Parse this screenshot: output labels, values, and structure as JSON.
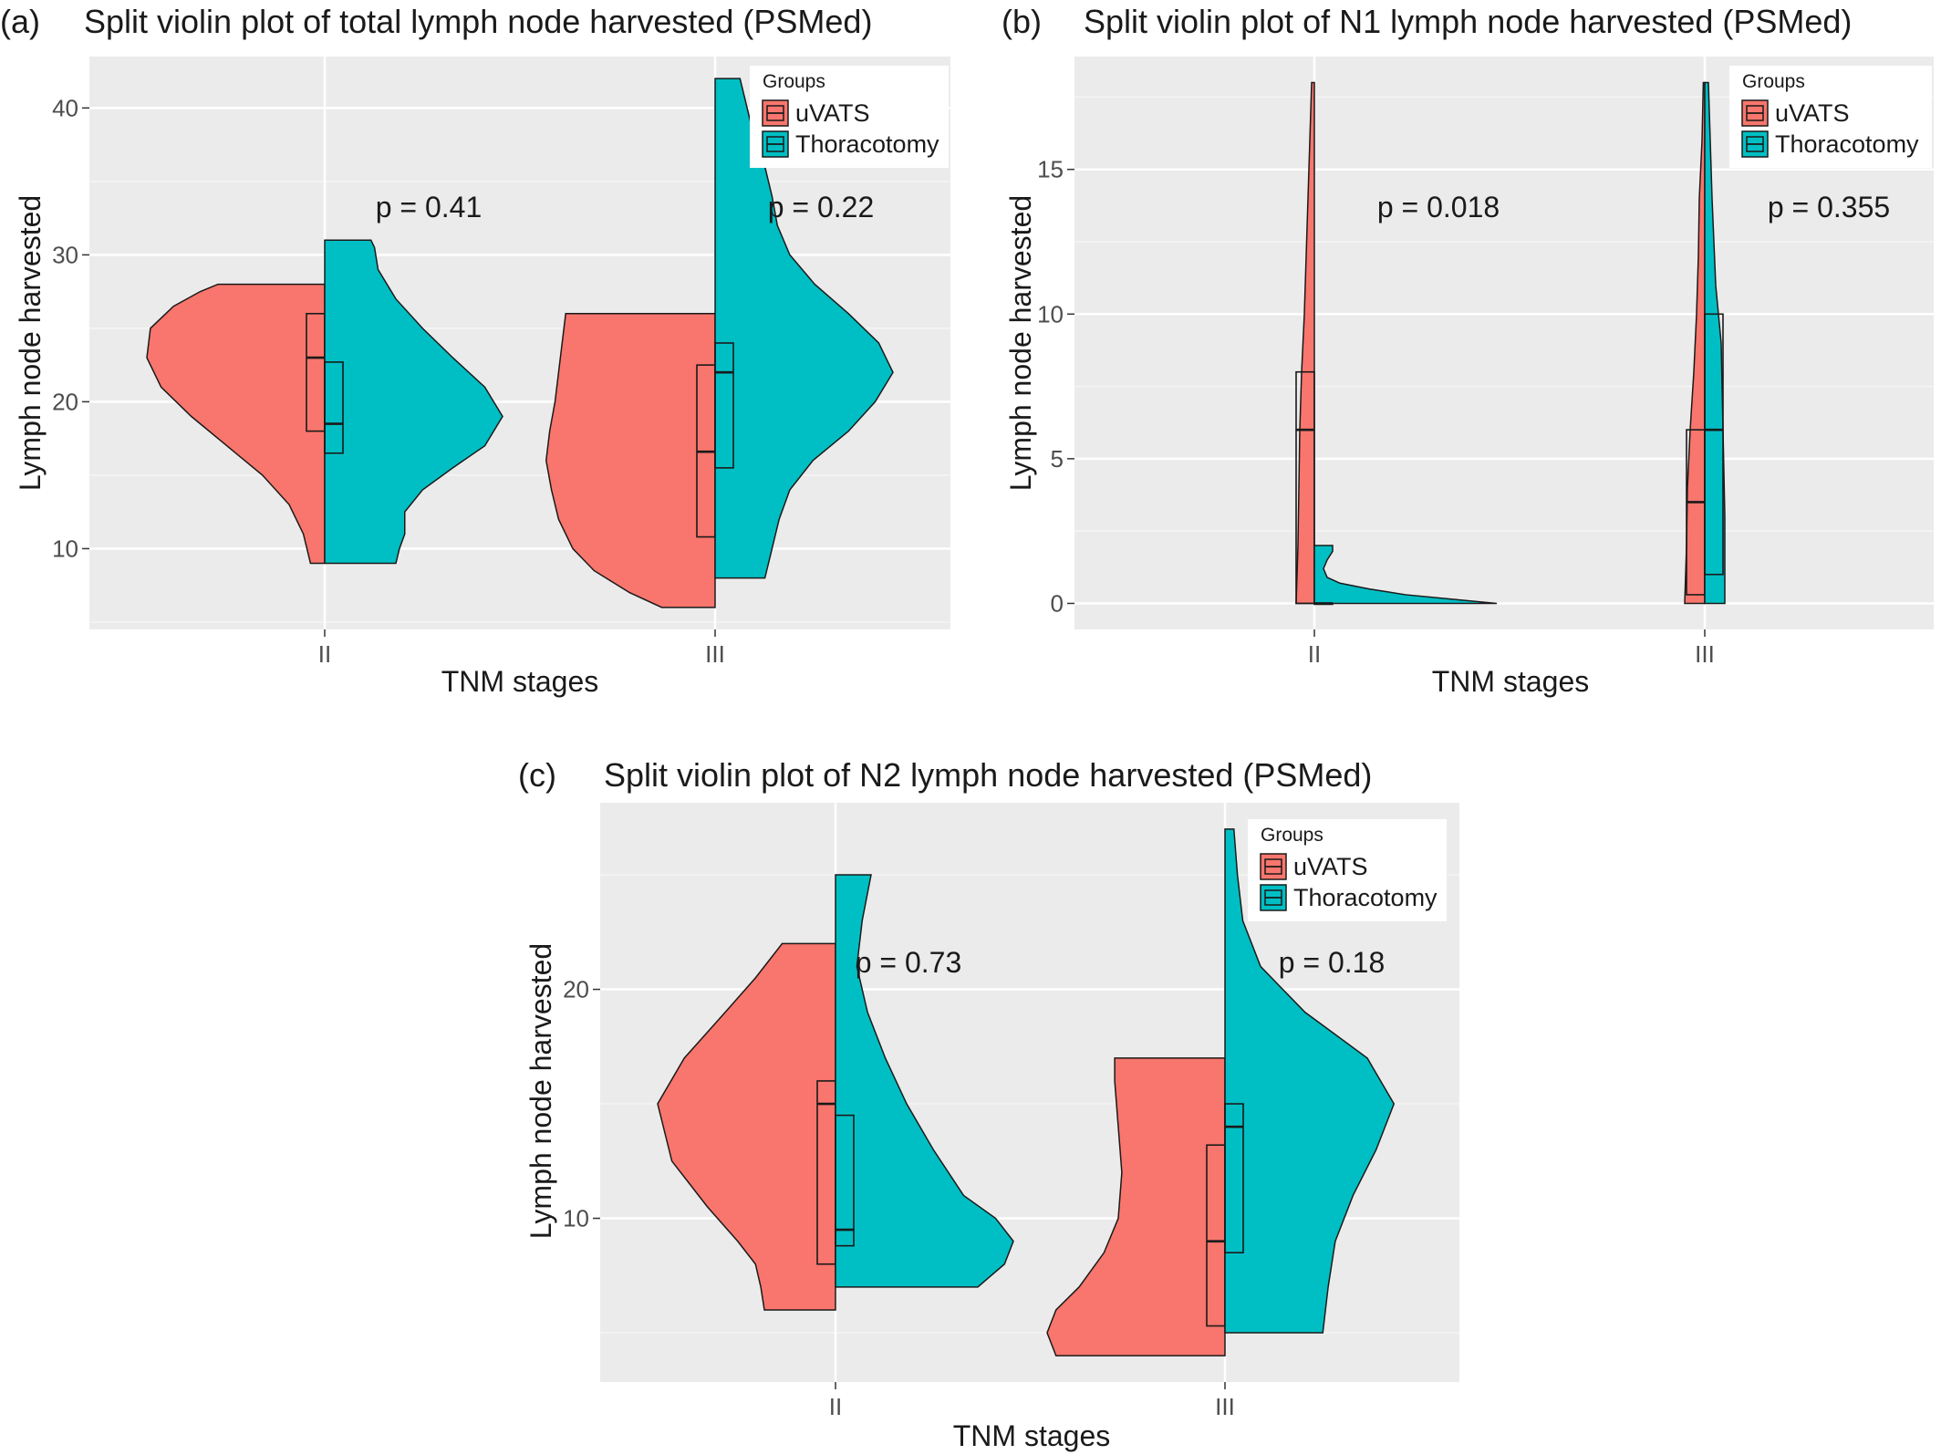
{
  "chart_data": [
    {
      "panel": "(a)",
      "type": "violin",
      "title": "Split violin plot of total lymph node harvested (PSMed)",
      "xlabel": "TNM stages",
      "ylabel": "Lymph node harvested",
      "categories": [
        "II",
        "III"
      ],
      "ylim": [
        4.5,
        43.5
      ],
      "yticks": [
        10,
        20,
        30,
        40
      ],
      "grid": true,
      "legend": {
        "title": "Groups",
        "position": "top-right",
        "entries": [
          "uVATS",
          "Thoracotomy"
        ]
      },
      "p_values": [
        "p = 0.41",
        "p = 0.22"
      ],
      "series": [
        {
          "name": "uVATS",
          "color": "#F8766D",
          "groups": [
            {
              "category": "II",
              "range": [
                9,
                28
              ],
              "box": {
                "q1": 18,
                "median": 23,
                "q3": 26
              },
              "density": [
                [
                  9,
                  0.08
                ],
                [
                  11,
                  0.12
                ],
                [
                  13,
                  0.2
                ],
                [
                  15,
                  0.35
                ],
                [
                  17,
                  0.55
                ],
                [
                  19,
                  0.75
                ],
                [
                  21,
                  0.92
                ],
                [
                  23,
                  1.0
                ],
                [
                  25,
                  0.98
                ],
                [
                  26.5,
                  0.85
                ],
                [
                  27.5,
                  0.7
                ],
                [
                  28,
                  0.6
                ]
              ]
            },
            {
              "category": "III",
              "range": [
                6,
                26
              ],
              "box": {
                "q1": 10.8,
                "median": 16.6,
                "q3": 22.5
              },
              "density": [
                [
                  6,
                  0.3
                ],
                [
                  7,
                  0.48
                ],
                [
                  8.5,
                  0.68
                ],
                [
                  10,
                  0.8
                ],
                [
                  12,
                  0.88
                ],
                [
                  14,
                  0.92
                ],
                [
                  16,
                  0.95
                ],
                [
                  18,
                  0.93
                ],
                [
                  20,
                  0.9
                ],
                [
                  22,
                  0.88
                ],
                [
                  24,
                  0.86
                ],
                [
                  26,
                  0.84
                ]
              ]
            }
          ]
        },
        {
          "name": "Thoracotomy",
          "color": "#00BFC4",
          "groups": [
            {
              "category": "II",
              "range": [
                9,
                31
              ],
              "box": {
                "q1": 16.5,
                "median": 18.5,
                "q3": 22.7
              },
              "density": [
                [
                  9,
                  0.4
                ],
                [
                  10,
                  0.42
                ],
                [
                  11,
                  0.45
                ],
                [
                  12.5,
                  0.45
                ],
                [
                  14,
                  0.55
                ],
                [
                  15.5,
                  0.72
                ],
                [
                  17,
                  0.9
                ],
                [
                  19,
                  1.0
                ],
                [
                  21,
                  0.9
                ],
                [
                  23,
                  0.72
                ],
                [
                  25,
                  0.55
                ],
                [
                  27,
                  0.4
                ],
                [
                  29,
                  0.3
                ],
                [
                  30.5,
                  0.28
                ],
                [
                  31,
                  0.26
                ]
              ]
            },
            {
              "category": "III",
              "range": [
                8,
                42
              ],
              "box": {
                "q1": 15.5,
                "median": 22,
                "q3": 24
              },
              "density": [
                [
                  8,
                  0.28
                ],
                [
                  10,
                  0.32
                ],
                [
                  12,
                  0.36
                ],
                [
                  14,
                  0.42
                ],
                [
                  16,
                  0.55
                ],
                [
                  18,
                  0.75
                ],
                [
                  20,
                  0.9
                ],
                [
                  22,
                  1.0
                ],
                [
                  24,
                  0.92
                ],
                [
                  26,
                  0.75
                ],
                [
                  28,
                  0.56
                ],
                [
                  30,
                  0.42
                ],
                [
                  32,
                  0.35
                ],
                [
                  34,
                  0.32
                ],
                [
                  36,
                  0.28
                ],
                [
                  38,
                  0.22
                ],
                [
                  40,
                  0.18
                ],
                [
                  42,
                  0.14
                ]
              ]
            }
          ]
        }
      ]
    },
    {
      "panel": "(b)",
      "type": "violin",
      "title": "Split violin plot of N1 lymph node harvested (PSMed)",
      "xlabel": "TNM stages",
      "ylabel": "Lymph node harvested",
      "categories": [
        "II",
        "III"
      ],
      "ylim": [
        -0.9,
        18.9
      ],
      "yticks": [
        0,
        5,
        10,
        15
      ],
      "grid": true,
      "legend": {
        "title": "Groups",
        "position": "top-right",
        "entries": [
          "uVATS",
          "Thoracotomy"
        ]
      },
      "p_values": [
        "p = 0.018",
        "p = 0.355"
      ],
      "series": [
        {
          "name": "uVATS",
          "color": "#F8766D",
          "groups": [
            {
              "category": "II",
              "range": [
                0,
                18
              ],
              "box": {
                "q1": 0,
                "median": 6,
                "q3": 8
              },
              "density": [
                [
                  0,
                  0.1
                ],
                [
                  2,
                  0.09
                ],
                [
                  4,
                  0.085
                ],
                [
                  6,
                  0.08
                ],
                [
                  8,
                  0.07
                ],
                [
                  10,
                  0.055
                ],
                [
                  12,
                  0.045
                ],
                [
                  14,
                  0.035
                ],
                [
                  16,
                  0.025
                ],
                [
                  18,
                  0.015
                ]
              ]
            },
            {
              "category": "III",
              "range": [
                0,
                18
              ],
              "box": {
                "q1": 0.3,
                "median": 3.5,
                "q3": 6
              },
              "density": [
                [
                  0,
                  0.11
                ],
                [
                  2,
                  0.1
                ],
                [
                  4,
                  0.095
                ],
                [
                  6,
                  0.08
                ],
                [
                  8,
                  0.06
                ],
                [
                  10,
                  0.045
                ],
                [
                  12,
                  0.035
                ],
                [
                  14,
                  0.03
                ],
                [
                  16,
                  0.015
                ],
                [
                  18,
                  0.008
                ]
              ]
            }
          ]
        },
        {
          "name": "Thoracotomy",
          "color": "#00BFC4",
          "groups": [
            {
              "category": "II",
              "range": [
                0,
                2
              ],
              "box": {
                "q1": 0,
                "median": 0,
                "q3": 0
              },
              "density": [
                [
                  0,
                  1.0
                ],
                [
                  0.15,
                  0.75
                ],
                [
                  0.3,
                  0.5
                ],
                [
                  0.5,
                  0.3
                ],
                [
                  0.7,
                  0.14
                ],
                [
                  0.9,
                  0.07
                ],
                [
                  1.2,
                  0.05
                ],
                [
                  1.5,
                  0.07
                ],
                [
                  1.8,
                  0.1
                ],
                [
                  2,
                  0.1
                ]
              ]
            },
            {
              "category": "III",
              "range": [
                0,
                18
              ],
              "box": {
                "q1": 1,
                "median": 6,
                "q3": 10
              },
              "density": [
                [
                  0,
                  0.11
                ],
                [
                  3,
                  0.11
                ],
                [
                  6,
                  0.1
                ],
                [
                  9,
                  0.09
                ],
                [
                  11,
                  0.06
                ],
                [
                  14,
                  0.04
                ],
                [
                  16,
                  0.03
                ],
                [
                  18,
                  0.02
                ]
              ]
            }
          ]
        }
      ]
    },
    {
      "panel": "(c)",
      "type": "violin",
      "title": "Split violin plot of N2 lymph node harvested (PSMed)",
      "xlabel": "TNM stages",
      "ylabel": "Lymph node harvested",
      "categories": [
        "II",
        "III"
      ],
      "ylim": [
        2.85,
        28.15
      ],
      "yticks": [
        10,
        20
      ],
      "grid": true,
      "legend": {
        "title": "Groups",
        "position": "top-right",
        "entries": [
          "uVATS",
          "Thoracotomy"
        ]
      },
      "p_values": [
        "p = 0.73",
        "p = 0.18"
      ],
      "series": [
        {
          "name": "uVATS",
          "color": "#F8766D",
          "groups": [
            {
              "category": "II",
              "range": [
                6,
                22
              ],
              "box": {
                "q1": 8,
                "median": 15,
                "q3": 16
              },
              "density": [
                [
                  6,
                  0.4
                ],
                [
                  7,
                  0.42
                ],
                [
                  8,
                  0.45
                ],
                [
                  9,
                  0.55
                ],
                [
                  10.5,
                  0.72
                ],
                [
                  12.5,
                  0.92
                ],
                [
                  15,
                  1.0
                ],
                [
                  17,
                  0.85
                ],
                [
                  19,
                  0.62
                ],
                [
                  20.5,
                  0.45
                ],
                [
                  22,
                  0.3
                ]
              ]
            },
            {
              "category": "III",
              "range": [
                4,
                17
              ],
              "box": {
                "q1": 5.3,
                "median": 9,
                "q3": 13.2
              },
              "density": [
                [
                  4,
                  0.95
                ],
                [
                  5,
                  1.0
                ],
                [
                  6,
                  0.95
                ],
                [
                  7,
                  0.82
                ],
                [
                  8.5,
                  0.68
                ],
                [
                  10,
                  0.6
                ],
                [
                  12,
                  0.58
                ],
                [
                  14,
                  0.6
                ],
                [
                  16,
                  0.62
                ],
                [
                  17,
                  0.62
                ]
              ]
            }
          ]
        },
        {
          "name": "Thoracotomy",
          "color": "#00BFC4",
          "groups": [
            {
              "category": "II",
              "range": [
                7,
                25
              ],
              "box": {
                "q1": 8.8,
                "median": 9.5,
                "q3": 14.5
              },
              "density": [
                [
                  7,
                  0.8
                ],
                [
                  8,
                  0.95
                ],
                [
                  9,
                  1.0
                ],
                [
                  10,
                  0.9
                ],
                [
                  11,
                  0.72
                ],
                [
                  13,
                  0.55
                ],
                [
                  15,
                  0.4
                ],
                [
                  17,
                  0.28
                ],
                [
                  19,
                  0.18
                ],
                [
                  21,
                  0.12
                ],
                [
                  23,
                  0.15
                ],
                [
                  25,
                  0.2
                ]
              ]
            },
            {
              "category": "III",
              "range": [
                5,
                27
              ],
              "box": {
                "q1": 8.5,
                "median": 14,
                "q3": 15
              },
              "density": [
                [
                  5,
                  0.55
                ],
                [
                  7,
                  0.58
                ],
                [
                  9,
                  0.62
                ],
                [
                  11,
                  0.72
                ],
                [
                  13,
                  0.85
                ],
                [
                  15,
                  0.95
                ],
                [
                  17,
                  0.8
                ],
                [
                  19,
                  0.45
                ],
                [
                  21,
                  0.2
                ],
                [
                  23,
                  0.1
                ],
                [
                  25,
                  0.07
                ],
                [
                  27,
                  0.05
                ]
              ]
            }
          ]
        }
      ]
    }
  ]
}
